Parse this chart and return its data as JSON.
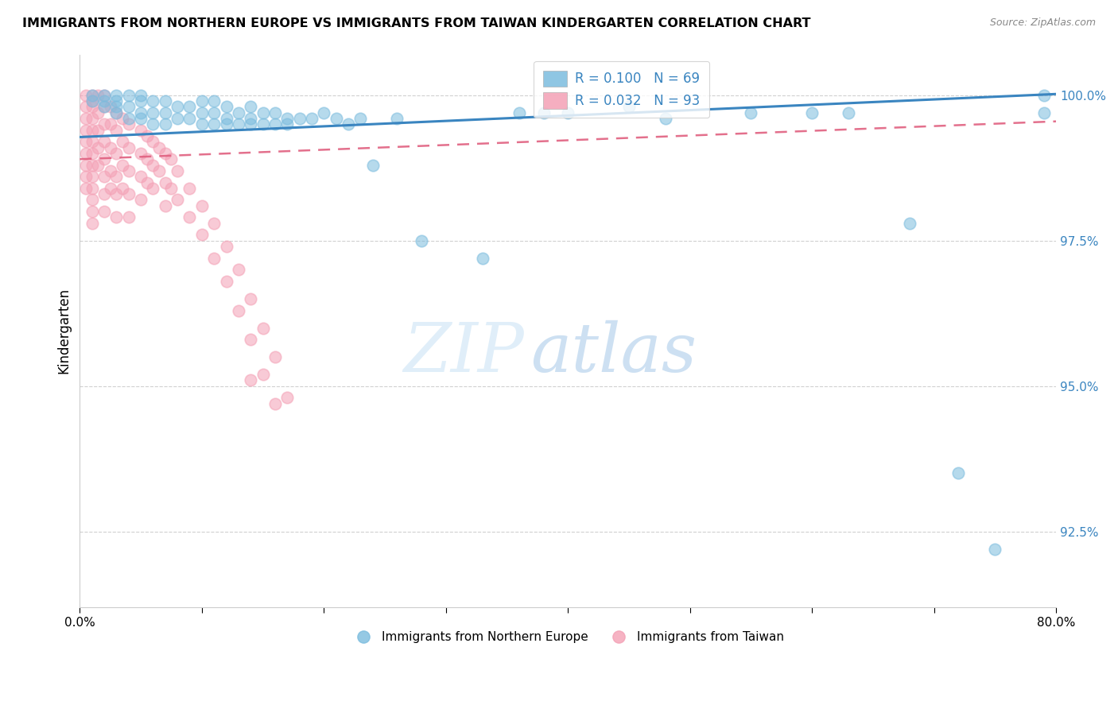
{
  "title": "IMMIGRANTS FROM NORTHERN EUROPE VS IMMIGRANTS FROM TAIWAN KINDERGARTEN CORRELATION CHART",
  "source": "Source: ZipAtlas.com",
  "ylabel": "Kindergarten",
  "yticks": [
    92.5,
    95.0,
    97.5,
    100.0
  ],
  "ytick_labels": [
    "92.5%",
    "95.0%",
    "97.5%",
    "100.0%"
  ],
  "xmin": 0.0,
  "xmax": 0.8,
  "ymin": 91.2,
  "ymax": 100.7,
  "blue_color": "#7bbcde",
  "pink_color": "#f4a0b5",
  "trendline_blue_color": "#3a85c0",
  "trendline_pink_color": "#e06080",
  "legend_label_blue": "Immigrants from Northern Europe",
  "legend_label_pink": "Immigrants from Taiwan",
  "blue_scatter_x": [
    0.01,
    0.01,
    0.02,
    0.02,
    0.02,
    0.03,
    0.03,
    0.03,
    0.03,
    0.04,
    0.04,
    0.04,
    0.05,
    0.05,
    0.05,
    0.05,
    0.06,
    0.06,
    0.06,
    0.07,
    0.07,
    0.07,
    0.08,
    0.08,
    0.09,
    0.09,
    0.1,
    0.1,
    0.1,
    0.11,
    0.11,
    0.11,
    0.12,
    0.12,
    0.12,
    0.13,
    0.13,
    0.14,
    0.14,
    0.14,
    0.15,
    0.15,
    0.16,
    0.16,
    0.17,
    0.17,
    0.18,
    0.19,
    0.2,
    0.21,
    0.22,
    0.23,
    0.24,
    0.26,
    0.28,
    0.33,
    0.36,
    0.38,
    0.4,
    0.45,
    0.48,
    0.55,
    0.6,
    0.63,
    0.68,
    0.72,
    0.75,
    0.79,
    0.79
  ],
  "blue_scatter_y": [
    99.9,
    100.0,
    99.8,
    99.9,
    100.0,
    99.7,
    99.8,
    99.9,
    100.0,
    99.6,
    99.8,
    100.0,
    99.6,
    99.7,
    99.9,
    100.0,
    99.5,
    99.7,
    99.9,
    99.5,
    99.7,
    99.9,
    99.6,
    99.8,
    99.6,
    99.8,
    99.5,
    99.7,
    99.9,
    99.5,
    99.7,
    99.9,
    99.5,
    99.6,
    99.8,
    99.5,
    99.7,
    99.5,
    99.6,
    99.8,
    99.5,
    99.7,
    99.5,
    99.7,
    99.5,
    99.6,
    99.6,
    99.6,
    99.7,
    99.6,
    99.5,
    99.6,
    98.8,
    99.6,
    97.5,
    97.2,
    99.7,
    99.7,
    99.7,
    99.8,
    99.6,
    99.7,
    99.7,
    99.7,
    97.8,
    93.5,
    92.2,
    100.0,
    99.7
  ],
  "pink_scatter_x": [
    0.005,
    0.005,
    0.005,
    0.005,
    0.005,
    0.005,
    0.005,
    0.005,
    0.005,
    0.01,
    0.01,
    0.01,
    0.01,
    0.01,
    0.01,
    0.01,
    0.01,
    0.01,
    0.01,
    0.01,
    0.01,
    0.01,
    0.015,
    0.015,
    0.015,
    0.015,
    0.015,
    0.02,
    0.02,
    0.02,
    0.02,
    0.02,
    0.02,
    0.02,
    0.02,
    0.025,
    0.025,
    0.025,
    0.025,
    0.025,
    0.03,
    0.03,
    0.03,
    0.03,
    0.03,
    0.03,
    0.035,
    0.035,
    0.035,
    0.035,
    0.04,
    0.04,
    0.04,
    0.04,
    0.04,
    0.05,
    0.05,
    0.05,
    0.05,
    0.055,
    0.055,
    0.055,
    0.06,
    0.06,
    0.06,
    0.065,
    0.065,
    0.07,
    0.07,
    0.07,
    0.075,
    0.075,
    0.08,
    0.08,
    0.09,
    0.09,
    0.1,
    0.1,
    0.11,
    0.11,
    0.12,
    0.12,
    0.13,
    0.13,
    0.14,
    0.14,
    0.14,
    0.15,
    0.15,
    0.16,
    0.16,
    0.17
  ],
  "pink_scatter_y": [
    100.0,
    99.8,
    99.6,
    99.4,
    99.2,
    99.0,
    98.8,
    98.6,
    98.4,
    100.0,
    99.9,
    99.8,
    99.6,
    99.4,
    99.2,
    99.0,
    98.8,
    98.6,
    98.4,
    98.2,
    98.0,
    97.8,
    100.0,
    99.7,
    99.4,
    99.1,
    98.8,
    100.0,
    99.8,
    99.5,
    99.2,
    98.9,
    98.6,
    98.3,
    98.0,
    99.8,
    99.5,
    99.1,
    98.7,
    98.4,
    99.7,
    99.4,
    99.0,
    98.6,
    98.3,
    97.9,
    99.6,
    99.2,
    98.8,
    98.4,
    99.5,
    99.1,
    98.7,
    98.3,
    97.9,
    99.4,
    99.0,
    98.6,
    98.2,
    99.3,
    98.9,
    98.5,
    99.2,
    98.8,
    98.4,
    99.1,
    98.7,
    99.0,
    98.5,
    98.1,
    98.9,
    98.4,
    98.7,
    98.2,
    98.4,
    97.9,
    98.1,
    97.6,
    97.8,
    97.2,
    97.4,
    96.8,
    97.0,
    96.3,
    96.5,
    95.8,
    95.1,
    96.0,
    95.2,
    95.5,
    94.7,
    94.8
  ]
}
